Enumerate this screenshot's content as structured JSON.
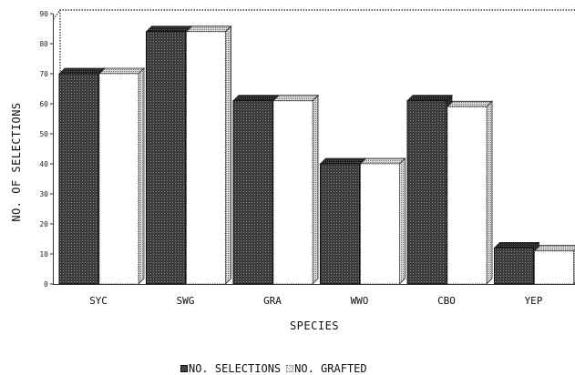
{
  "chart_data": {
    "type": "bar",
    "title": "",
    "xlabel": "SPECIES",
    "ylabel": "NO. OF SELECTIONS",
    "ylim": [
      0,
      90
    ],
    "yticks": [
      0,
      10,
      20,
      30,
      40,
      50,
      60,
      70,
      80,
      90
    ],
    "categories": [
      "SYC",
      "SWG",
      "GRA",
      "WWO",
      "CBO",
      "YEP"
    ],
    "series": [
      {
        "name": "NO. SELECTIONS",
        "values": [
          70,
          84,
          61,
          40,
          61,
          12
        ],
        "color": "#3a3a3a"
      },
      {
        "name": "NO. GRAFTED",
        "values": [
          70,
          84,
          61,
          40,
          59,
          11
        ],
        "color": "#ffffff"
      }
    ],
    "legend_position": "bottom",
    "style": "3d-bars"
  }
}
